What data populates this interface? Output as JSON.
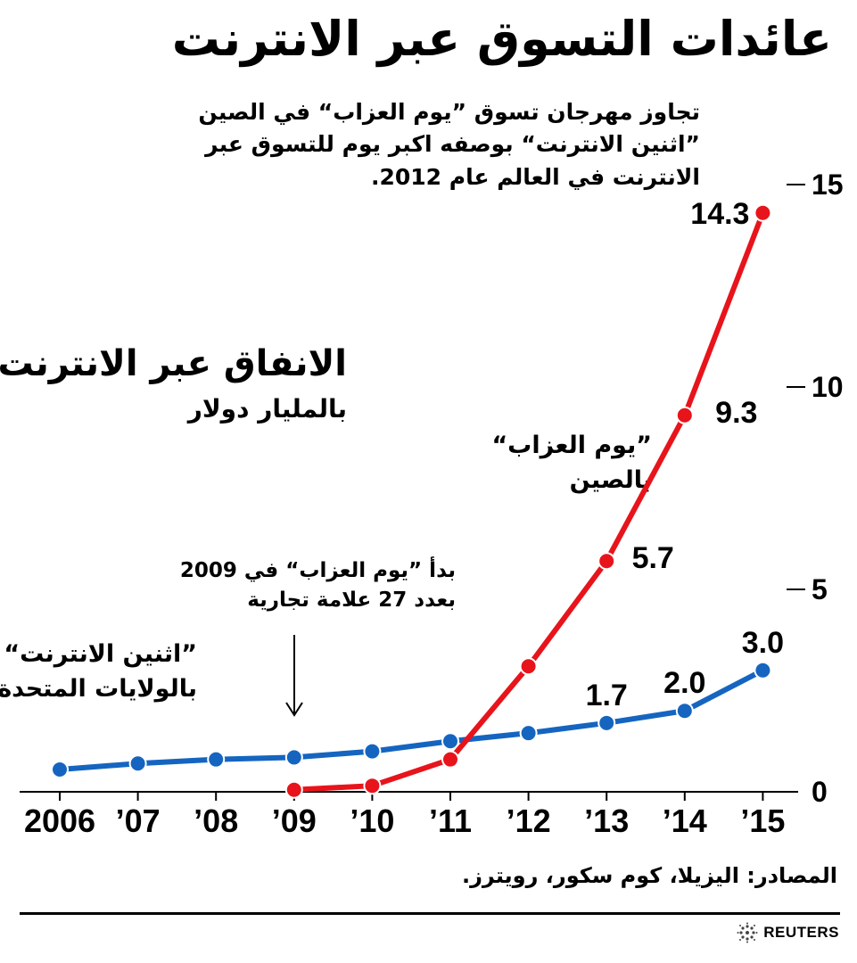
{
  "header": {
    "title": "عائدات التسوق عبر الانترنت",
    "intro": "تجاوز مهرجان تسوق ”يوم العزاب“ في الصين ”اثنين الانترنت“ بوصفه اكبر يوم للتسوق عبر الانترنت في العالم عام 2012."
  },
  "annotations": {
    "china_label_line1": "”يوم العزاب“",
    "china_label_line2": "بالصين",
    "us_label_line1": "”اثنين الانترنت“",
    "us_label_line2": "بالولايات المتحدة",
    "note_2009_line1": "بدأ ”يوم العزاب“ في 2009",
    "note_2009_line2": "بعدد 27 علامة تجارية"
  },
  "footer": {
    "sources": "المصادر: اليزيلا، كوم سكور، رويترز.",
    "logo_text": "REUTERS"
  },
  "colors": {
    "china": "#e8141b",
    "us": "#1565c0",
    "text": "#000000"
  },
  "chart_data": {
    "type": "line",
    "title": "الانفاق عبر الانترنت",
    "subtitle": "بالمليار دولار",
    "categories": [
      "2006",
      "’07",
      "’08",
      "’09",
      "’10",
      "’11",
      "’12",
      "’13",
      "’14",
      "’15"
    ],
    "ylim": [
      0,
      15
    ],
    "y_ticks": [
      0,
      5,
      10,
      15
    ],
    "y_tick_labels": [
      "0",
      "5",
      "10",
      "15"
    ],
    "grid": false,
    "series": [
      {
        "name": "”يوم العزاب“ بالصين",
        "color": "#e8141b",
        "values": [
          null,
          null,
          null,
          0.05,
          0.15,
          0.8,
          3.1,
          5.7,
          9.3,
          14.3
        ],
        "labels": [
          null,
          null,
          null,
          null,
          null,
          null,
          null,
          "5.7",
          "9.3",
          "14.3"
        ]
      },
      {
        "name": "”اثنين الانترنت“ بالولايات المتحدة",
        "color": "#1565c0",
        "values": [
          0.55,
          0.7,
          0.8,
          0.85,
          1.0,
          1.25,
          1.45,
          1.7,
          2.0,
          3.0
        ],
        "labels": [
          null,
          null,
          null,
          null,
          null,
          null,
          null,
          "1.7",
          "2.0",
          "3.0"
        ]
      }
    ]
  }
}
